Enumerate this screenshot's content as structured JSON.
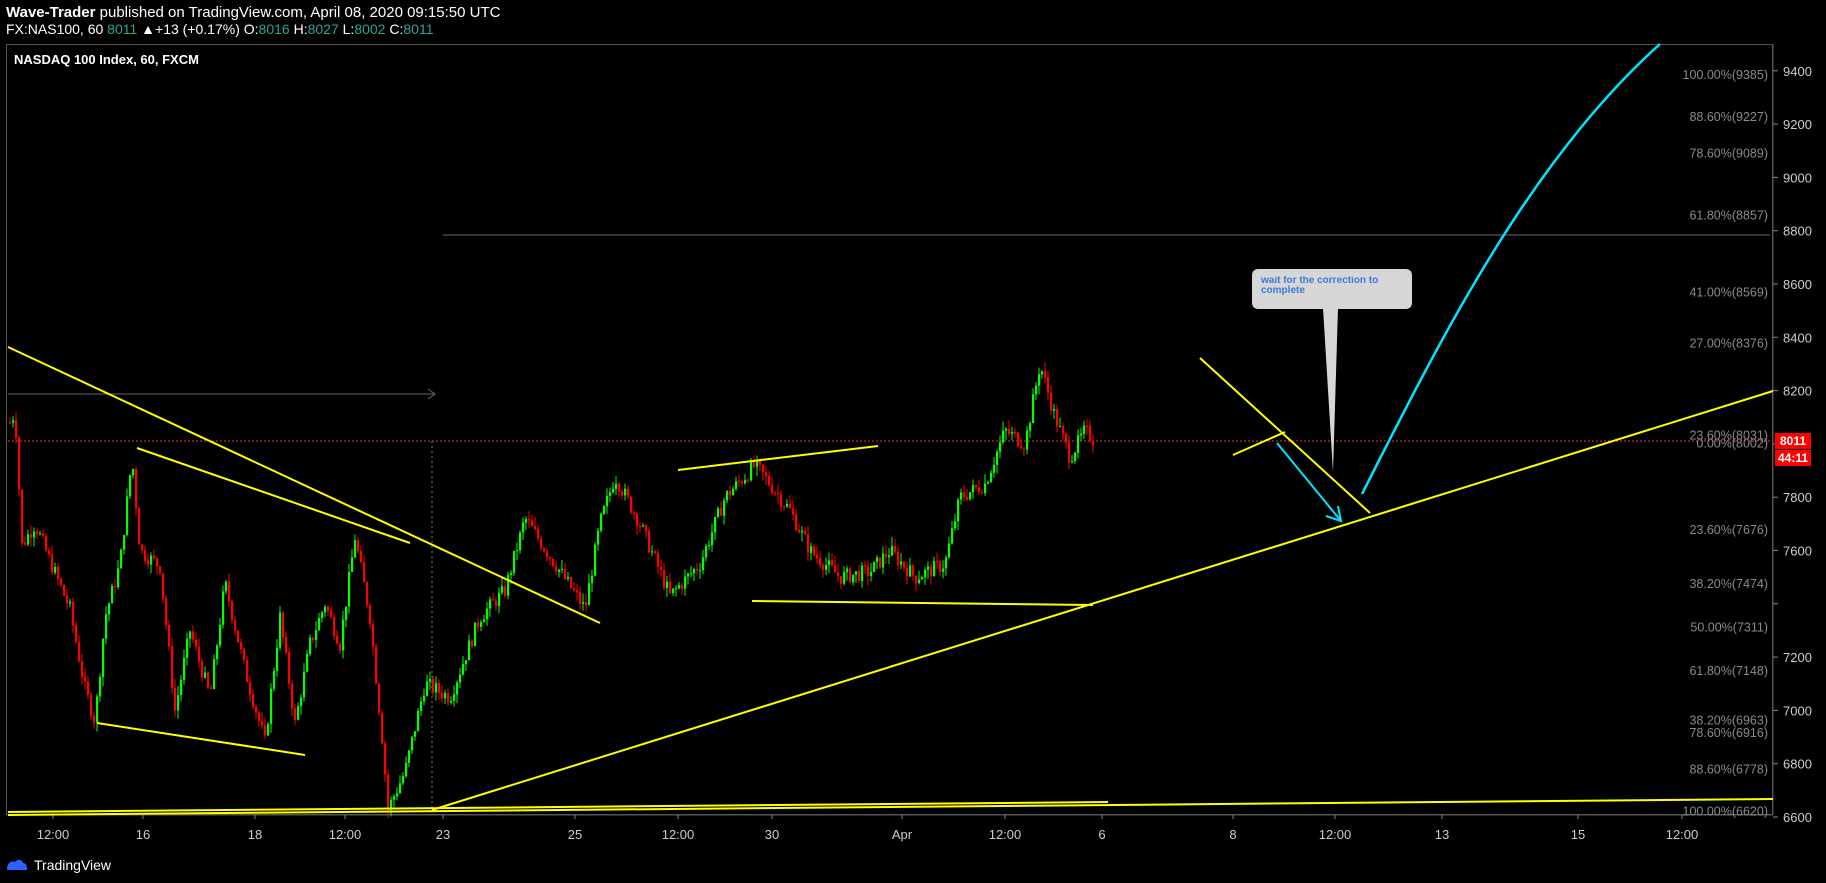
{
  "header": {
    "author": "Wave-Trader",
    "published": "published on TradingView.com, April 08, 2020 09:15:50 UTC",
    "symbol": "FX:NAS100, 60",
    "last": "8011",
    "change": "+13 (+0.17%)",
    "o_label": "O:",
    "o": "8016",
    "h_label": "H:",
    "h": "8027",
    "l_label": "L:",
    "l": "8002",
    "c_label": "C:",
    "c": "8011"
  },
  "chart_title": "NASDAQ 100 Index, 60, FXCM",
  "footer": {
    "brand": "TradingView",
    "logo": "tradingview-logo"
  },
  "colors": {
    "up": "#00ff00",
    "down": "#ff0000",
    "trend": "#ffff00",
    "projection": "#00e5ff",
    "price_tag": "#ff0000"
  },
  "chart_data": {
    "type": "candlestick",
    "title": "NASDAQ 100 Index, 60, FXCM",
    "ylim": [
      6600,
      9480
    ],
    "y_ticks": [
      6600,
      6800,
      7000,
      7200,
      7400,
      7600,
      7800,
      8000,
      8200,
      8400,
      8600,
      8800,
      9000,
      9200,
      9400
    ],
    "y_tick_labels": [
      "6600",
      "6800",
      "7000",
      "7200",
      "",
      "7600",
      "7800",
      "",
      "8200",
      "8400",
      "8600",
      "8800",
      "9000",
      "9200",
      "9400"
    ],
    "x_tick_labels": [
      "12:00",
      "16",
      "18",
      "12:00",
      "23",
      "25",
      "12:00",
      "30",
      "Apr",
      "12:00",
      "6",
      "8",
      "12:00",
      "13",
      "15",
      "12:00"
    ],
    "current_price": {
      "value": 8011,
      "label": "8011",
      "countdown": "44:11"
    },
    "path": [
      [
        0,
        8080
      ],
      [
        5,
        8120
      ],
      [
        12,
        7620
      ],
      [
        25,
        7700
      ],
      [
        40,
        7560
      ],
      [
        60,
        7380
      ],
      [
        75,
        7080
      ],
      [
        85,
        6960
      ],
      [
        95,
        7350
      ],
      [
        110,
        7550
      ],
      [
        122,
        7950
      ],
      [
        130,
        7600
      ],
      [
        150,
        7540
      ],
      [
        165,
        7000
      ],
      [
        180,
        7300
      ],
      [
        200,
        7050
      ],
      [
        215,
        7480
      ],
      [
        235,
        7150
      ],
      [
        255,
        6880
      ],
      [
        270,
        7350
      ],
      [
        285,
        6950
      ],
      [
        300,
        7250
      ],
      [
        315,
        7400
      ],
      [
        330,
        7250
      ],
      [
        345,
        7650
      ],
      [
        360,
        7350
      ],
      [
        372,
        6900
      ],
      [
        378,
        6630
      ],
      [
        395,
        6770
      ],
      [
        415,
        7100
      ],
      [
        440,
        7050
      ],
      [
        470,
        7350
      ],
      [
        495,
        7450
      ],
      [
        515,
        7720
      ],
      [
        545,
        7550
      ],
      [
        575,
        7380
      ],
      [
        590,
        7700
      ],
      [
        605,
        7880
      ],
      [
        630,
        7700
      ],
      [
        660,
        7430
      ],
      [
        690,
        7550
      ],
      [
        715,
        7800
      ],
      [
        745,
        7920
      ],
      [
        760,
        7850
      ],
      [
        780,
        7750
      ],
      [
        800,
        7600
      ],
      [
        830,
        7500
      ],
      [
        860,
        7520
      ],
      [
        880,
        7600
      ],
      [
        905,
        7500
      ],
      [
        935,
        7550
      ],
      [
        950,
        7800
      ],
      [
        975,
        7850
      ],
      [
        995,
        8050
      ],
      [
        1015,
        8000
      ],
      [
        1030,
        8300
      ],
      [
        1045,
        8100
      ],
      [
        1060,
        7950
      ],
      [
        1075,
        8050
      ],
      [
        1085,
        8011
      ]
    ],
    "fib_levels": [
      {
        "label": "100.00%(9385)",
        "value": 9385
      },
      {
        "label": "88.60%(9227)",
        "value": 9227
      },
      {
        "label": "78.60%(9089)",
        "value": 9089
      },
      {
        "label": "61.80%(8857)",
        "value": 8857
      },
      {
        "label": "41.00%(8569)",
        "value": 8569
      },
      {
        "label": "27.00%(8376)",
        "value": 8376
      },
      {
        "label": "23.60%(8031)",
        "value": 8031
      },
      {
        "label": "0.00%(8002)",
        "value": 8002
      },
      {
        "label": "23.60%(7676)",
        "value": 7676
      },
      {
        "label": "38.20%(7474)",
        "value": 7474
      },
      {
        "label": "50.00%(7311)",
        "value": 7311
      },
      {
        "label": "61.80%(7148)",
        "value": 7148
      },
      {
        "label": "38.20%(6963)",
        "value": 6963
      },
      {
        "label": "78.60%(6916)",
        "value": 6916
      },
      {
        "label": "88.60%(6778)",
        "value": 6778
      },
      {
        "label": "100.00%(6620)",
        "value": 6620
      }
    ],
    "annotation": "wait for the correction to complete"
  }
}
